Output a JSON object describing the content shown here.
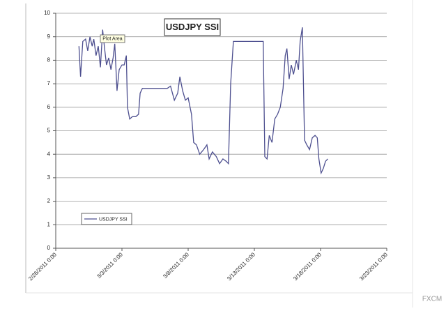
{
  "chart_data": {
    "type": "line",
    "title": "USDJPY SSI",
    "annotation": "Plot Area",
    "x": [
      "2011-02-27T18:00",
      "2011-02-27T21:00",
      "2011-02-28T01:00",
      "2011-02-28T06:00",
      "2011-02-28T10:00",
      "2011-02-28T14:00",
      "2011-02-28T18:00",
      "2011-02-28T21:00",
      "2011-03-01T01:00",
      "2011-03-01T05:00",
      "2011-03-01T09:00",
      "2011-03-01T13:00",
      "2011-03-01T16:00",
      "2011-03-01T20:00",
      "2011-03-02T00:00",
      "2011-03-02T04:00",
      "2011-03-02T08:00",
      "2011-03-02T11:00",
      "2011-03-02T15:00",
      "2011-03-02T19:00",
      "2011-03-03T00:00",
      "2011-03-03T04:00",
      "2011-03-03T08:00",
      "2011-03-03T10:00",
      "2011-03-03T14:00",
      "2011-03-03T19:00",
      "2011-03-04T01:00",
      "2011-03-04T06:00",
      "2011-03-04T09:00",
      "2011-03-04T13:00",
      "2011-03-04T20:00",
      "2011-03-06T10:00",
      "2011-03-06T16:00",
      "2011-03-06T23:00",
      "2011-03-07T05:00",
      "2011-03-07T09:00",
      "2011-03-07T14:00",
      "2011-03-07T19:00",
      "2011-03-08T00:00",
      "2011-03-08T06:00",
      "2011-03-08T10:00",
      "2011-03-08T15:00",
      "2011-03-08T21:00",
      "2011-03-09T04:00",
      "2011-03-09T10:00",
      "2011-03-09T14:00",
      "2011-03-09T20:00",
      "2011-03-10T03:00",
      "2011-03-10T09:00",
      "2011-03-10T15:00",
      "2011-03-10T21:00",
      "2011-03-11T01:00",
      "2011-03-11T05:00",
      "2011-03-11T10:00",
      "2011-03-11T23:00",
      "2011-03-13T06:00",
      "2011-03-13T16:00",
      "2011-03-13T19:00",
      "2011-03-13T23:00",
      "2011-03-14T03:00",
      "2011-03-14T08:00",
      "2011-03-14T13:00",
      "2011-03-14T18:00",
      "2011-03-14T23:00",
      "2011-03-15T04:00",
      "2011-03-15T08:00",
      "2011-03-15T11:00",
      "2011-03-15T15:00",
      "2011-03-15T19:00",
      "2011-03-15T23:00",
      "2011-03-16T04:00",
      "2011-03-16T08:00",
      "2011-03-16T11:00",
      "2011-03-16T15:00",
      "2011-03-16T19:00",
      "2011-03-16T23:00",
      "2011-03-17T04:00",
      "2011-03-17T09:00",
      "2011-03-17T14:00",
      "2011-03-17T18:00",
      "2011-03-17T21:00",
      "2011-03-18T01:00",
      "2011-03-18T05:00",
      "2011-03-18T09:00",
      "2011-03-18T13:00"
    ],
    "series": [
      {
        "name": "USDJPY SSI",
        "color": "#4d4f8f",
        "values": [
          8.6,
          7.3,
          8.8,
          8.9,
          8.4,
          9.0,
          8.6,
          8.9,
          8.2,
          8.6,
          7.7,
          9.3,
          8.6,
          7.8,
          8.1,
          7.6,
          8.1,
          8.7,
          6.7,
          7.6,
          7.8,
          7.8,
          8.2,
          6.0,
          5.5,
          5.6,
          5.6,
          5.7,
          6.6,
          6.8,
          6.8,
          6.8,
          6.9,
          6.3,
          6.6,
          7.3,
          6.7,
          6.3,
          6.4,
          5.7,
          4.5,
          4.4,
          4.0,
          4.2,
          4.4,
          3.8,
          4.1,
          3.9,
          3.6,
          3.8,
          3.7,
          3.6,
          7.0,
          8.8,
          8.8,
          8.8,
          8.8,
          3.9,
          3.8,
          4.8,
          4.5,
          5.5,
          5.7,
          6.0,
          6.8,
          8.2,
          8.5,
          7.2,
          7.8,
          7.4,
          8.0,
          7.6,
          8.8,
          9.4,
          4.6,
          4.4,
          4.2,
          4.7,
          4.8,
          4.7,
          3.8,
          3.2,
          3.4,
          3.7,
          3.8
        ]
      }
    ],
    "xlim": [
      "2011-02-26T00:00",
      "2011-03-23T00:00"
    ],
    "xticks": [
      {
        "value": "2011-02-26T00:00",
        "label": "2/26/2011 0:00"
      },
      {
        "value": "2011-03-03T00:00",
        "label": "3/3/2011 0:00"
      },
      {
        "value": "2011-03-08T00:00",
        "label": "3/8/2011 0:00"
      },
      {
        "value": "2011-03-13T00:00",
        "label": "3/13/2011 0:00"
      },
      {
        "value": "2011-03-18T00:00",
        "label": "3/18/2011 0:00"
      },
      {
        "value": "2011-03-23T00:00",
        "label": "3/23/2011 0:00"
      }
    ],
    "ylim": [
      0,
      10
    ],
    "yticks": [
      0,
      1,
      2,
      3,
      4,
      5,
      6,
      7,
      8,
      9,
      10
    ],
    "grid": true,
    "legend": "lower-left"
  },
  "watermark": "FXCM"
}
